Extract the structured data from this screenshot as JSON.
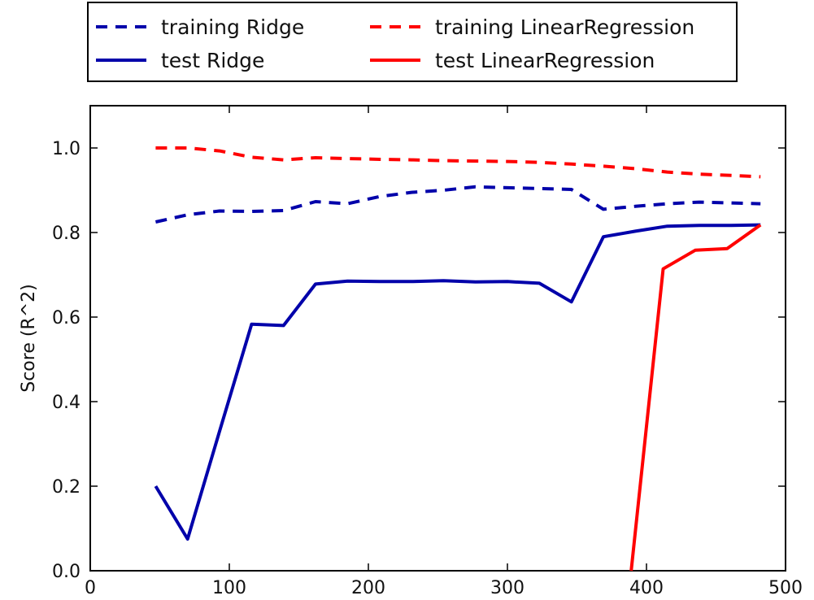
{
  "chart_data": {
    "type": "line",
    "title": "",
    "xlabel": "",
    "ylabel": "Score (R^2)",
    "xlim": [
      0,
      500
    ],
    "ylim": [
      0.0,
      1.1
    ],
    "x_ticks": [
      "0",
      "100",
      "200",
      "300",
      "400",
      "500"
    ],
    "y_ticks": [
      "0.0",
      "0.2",
      "0.4",
      "0.6",
      "0.8",
      "1.0"
    ],
    "grid": false,
    "legend_position": "top (above plot)",
    "series": [
      {
        "name": "training Ridge",
        "color": "#0000aa",
        "style": "dashed",
        "x": [
          47,
          70,
          93,
          116,
          139,
          162,
          185,
          208,
          231,
          254,
          277,
          300,
          323,
          346,
          369,
          392,
          415,
          438,
          461,
          482
        ],
        "y": [
          0.825,
          0.842,
          0.851,
          0.85,
          0.852,
          0.873,
          0.868,
          0.885,
          0.895,
          0.9,
          0.908,
          0.906,
          0.904,
          0.902,
          0.855,
          0.862,
          0.868,
          0.872,
          0.87,
          0.868
        ]
      },
      {
        "name": "test Ridge",
        "color": "#0000aa",
        "style": "solid",
        "x": [
          47,
          70,
          93,
          116,
          139,
          162,
          185,
          208,
          231,
          254,
          277,
          300,
          323,
          346,
          369,
          392,
          415,
          438,
          461,
          482
        ],
        "y": [
          0.2,
          0.075,
          0.33,
          0.583,
          0.58,
          0.678,
          0.685,
          0.684,
          0.684,
          0.686,
          0.683,
          0.684,
          0.68,
          0.636,
          0.79,
          0.803,
          0.815,
          0.817,
          0.817,
          0.818
        ]
      },
      {
        "name": "training LinearRegression",
        "color": "#ff0000",
        "style": "dashed",
        "x": [
          47,
          70,
          93,
          116,
          139,
          162,
          185,
          208,
          231,
          254,
          277,
          300,
          323,
          346,
          369,
          392,
          415,
          438,
          461,
          482
        ],
        "y": [
          1.0,
          1.0,
          0.993,
          0.978,
          0.972,
          0.977,
          0.975,
          0.973,
          0.972,
          0.97,
          0.969,
          0.968,
          0.966,
          0.962,
          0.957,
          0.951,
          0.943,
          0.938,
          0.935,
          0.932
        ]
      },
      {
        "name": "test LinearRegression",
        "color": "#ff0000",
        "style": "solid",
        "x": [
          389,
          412,
          435,
          458,
          482
        ],
        "y": [
          0.0,
          0.714,
          0.758,
          0.762,
          0.818
        ]
      }
    ],
    "legend": [
      {
        "label": "training Ridge",
        "color": "#0000aa",
        "style": "dashed"
      },
      {
        "label": "training LinearRegression",
        "color": "#ff0000",
        "style": "dashed"
      },
      {
        "label": "test Ridge",
        "color": "#0000aa",
        "style": "solid"
      },
      {
        "label": "test LinearRegression",
        "color": "#ff0000",
        "style": "solid"
      }
    ]
  }
}
